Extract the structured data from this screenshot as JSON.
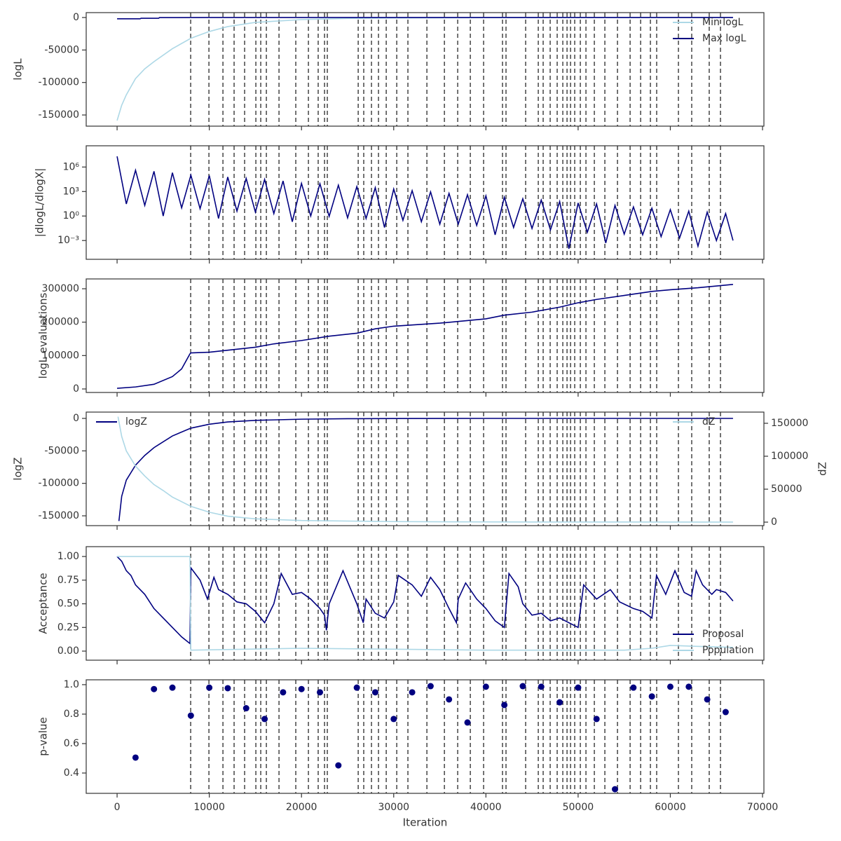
{
  "chart_data": [
    {
      "type": "line",
      "ylabel": "logL",
      "ylim": [
        -167200,
        7530
      ],
      "yticks": [
        0,
        -50000,
        -100000,
        -150000
      ],
      "legend": "upper right",
      "series": [
        {
          "name": "Min logL",
          "color": "#add8e6",
          "x": [
            0,
            500,
            1000,
            2000,
            3000,
            4000,
            6000,
            8000,
            10000,
            12000,
            15000,
            20000,
            25000,
            30000,
            40000,
            50000,
            66800
          ],
          "values": [
            -158600,
            -135000,
            -119000,
            -94000,
            -79000,
            -68000,
            -48000,
            -32000,
            -21500,
            -14000,
            -7500,
            -3200,
            -1500,
            -800,
            -300,
            -100,
            -20
          ]
        },
        {
          "name": "Max logL",
          "color": "#000080",
          "x": [
            0,
            2500,
            2600,
            4500,
            4600,
            10000,
            66800
          ],
          "values": [
            -2000,
            -2000,
            -1200,
            -1200,
            -100,
            0,
            0
          ]
        }
      ]
    },
    {
      "type": "line",
      "ylabel": "|dlogL/dlogX|",
      "log_scale": true,
      "ylim": [
        5e-06,
        400000000.0
      ],
      "yticks": [
        {
          "value": 1000000,
          "label": "10⁶"
        },
        {
          "value": 1000,
          "label": "10³"
        },
        {
          "value": 1,
          "label": "10⁰"
        },
        {
          "value": 0.001,
          "label": "10⁻³"
        }
      ],
      "series": [
        {
          "color": "#000080",
          "x": [
            0,
            1000,
            2000,
            3000,
            4000,
            5000,
            6000,
            7000,
            8000,
            9000,
            10000,
            11000,
            12000,
            13000,
            14000,
            15000,
            16000,
            17000,
            18000,
            19000,
            20000,
            21000,
            22000,
            23000,
            24000,
            25000,
            26000,
            27000,
            28000,
            29000,
            30000,
            31000,
            32000,
            33000,
            34000,
            35000,
            36000,
            37000,
            38000,
            39000,
            40000,
            41000,
            42000,
            43000,
            44000,
            45000,
            46000,
            47000,
            48000,
            49000,
            50000,
            51000,
            52000,
            53000,
            54000,
            55000,
            56000,
            57000,
            58000,
            59000,
            60000,
            61000,
            62000,
            63000,
            64000,
            65000,
            66000,
            66800
          ],
          "values": [
            20000000,
            30,
            400000,
            20,
            300000,
            1,
            200000,
            10,
            100000,
            8,
            90000,
            0.5,
            60000,
            4,
            40000,
            3,
            30000,
            2,
            20000,
            0.2,
            10000,
            1,
            9000,
            0.9,
            6000,
            0.6,
            4000,
            0.5,
            3000,
            0.04,
            2000,
            0.3,
            1300,
            0.2,
            900,
            0.1,
            600,
            0.1,
            400,
            0.07,
            300,
            0.005,
            200,
            0.04,
            130,
            0.03,
            90,
            0.02,
            60,
            0.0001,
            40,
            0.01,
            30,
            0.0005,
            20,
            0.006,
            13,
            0.005,
            9,
            0.003,
            6,
            0.002,
            4,
            0.0002,
            3,
            0.001,
            2,
            0.001
          ]
        }
      ]
    },
    {
      "type": "line",
      "ylabel": "logL evaluations",
      "ylim": [
        -10500,
        329400
      ],
      "yticks": [
        0,
        100000,
        200000,
        300000
      ],
      "series": [
        {
          "color": "#000080",
          "x": [
            0,
            2000,
            4000,
            6000,
            7000,
            7900,
            8000,
            10000,
            15000,
            17000,
            20000,
            23000,
            26000,
            28000,
            30000,
            35000,
            40000,
            42000,
            45000,
            48000,
            50000,
            52000,
            55000,
            58000,
            60000,
            63000,
            66800
          ],
          "values": [
            2000,
            6000,
            14000,
            37000,
            60000,
            105000,
            108000,
            110000,
            125000,
            135000,
            145000,
            158000,
            167000,
            180000,
            188000,
            197000,
            210000,
            221000,
            230000,
            245000,
            258000,
            268000,
            280000,
            292000,
            297000,
            303000,
            313000
          ]
        }
      ]
    },
    {
      "type": "line",
      "ylabel": "logZ",
      "y2label": "dZ",
      "ylim": [
        -165100,
        9720
      ],
      "yticks": [
        0,
        -50000,
        -100000,
        -150000
      ],
      "y2lim": [
        -5300,
        167000
      ],
      "y2ticks": [
        0,
        50000,
        100000,
        150000
      ],
      "legend": "upper left",
      "legend2": "upper right",
      "series": [
        {
          "name": "logZ",
          "color": "#000080",
          "x": [
            200,
            500,
            1000,
            2000,
            3000,
            4000,
            6000,
            8000,
            10000,
            12000,
            15000,
            20000,
            25000,
            30000,
            40000,
            66800
          ],
          "values": [
            -158000,
            -120000,
            -95000,
            -72000,
            -57000,
            -45000,
            -27000,
            -15000,
            -9000,
            -5500,
            -3000,
            -1200,
            -500,
            -200,
            0,
            0
          ]
        },
        {
          "name": "dZ",
          "color": "#add8e6",
          "axis": "y2",
          "x": [
            100,
            500,
            1000,
            2000,
            3000,
            4000,
            5000,
            6000,
            8000,
            10000,
            12000,
            15000,
            20000,
            30000,
            40000,
            66800
          ],
          "values": [
            160000,
            130000,
            108000,
            85000,
            70000,
            57000,
            48000,
            38000,
            24000,
            15000,
            9000,
            5000,
            2500,
            800,
            300,
            100
          ]
        }
      ]
    },
    {
      "type": "line",
      "ylabel": "Acceptance",
      "ylim": [
        -0.096,
        1.104
      ],
      "yticks": [
        {
          "value": 0,
          "label": "0.00"
        },
        {
          "value": 0.25,
          "label": "0.25"
        },
        {
          "value": 0.5,
          "label": "0.50"
        },
        {
          "value": 0.75,
          "label": "0.75"
        },
        {
          "value": 1,
          "label": "1.00"
        }
      ],
      "legend": "lower right",
      "series": [
        {
          "name": "Proposal",
          "color": "#000080",
          "x": [
            0,
            500,
            1000,
            1500,
            2000,
            3000,
            4000,
            5000,
            6000,
            7000,
            7900,
            8000,
            9000,
            9800,
            10500,
            11000,
            12000,
            13000,
            14000,
            15000,
            16000,
            17000,
            17800,
            19000,
            20000,
            21000,
            22000,
            22500,
            22700,
            23000,
            24500,
            26000,
            26700,
            27000,
            28000,
            29000,
            30000,
            30500,
            32000,
            33000,
            34000,
            35000,
            36000,
            36800,
            37000,
            37800,
            39000,
            40000,
            41000,
            42000,
            42500,
            43500,
            44000,
            45000,
            46000,
            47000,
            48000,
            49000,
            50000,
            50600,
            52000,
            53500,
            54500,
            56000,
            57000,
            58000,
            58500,
            59500,
            60500,
            61500,
            62300,
            62800,
            63500,
            64500,
            65000,
            66000,
            66800
          ],
          "values": [
            1.0,
            0.95,
            0.85,
            0.8,
            0.7,
            0.6,
            0.45,
            0.35,
            0.25,
            0.15,
            0.08,
            0.88,
            0.75,
            0.55,
            0.78,
            0.65,
            0.6,
            0.52,
            0.5,
            0.42,
            0.3,
            0.5,
            0.82,
            0.6,
            0.62,
            0.55,
            0.45,
            0.38,
            0.22,
            0.5,
            0.85,
            0.5,
            0.3,
            0.55,
            0.4,
            0.35,
            0.52,
            0.8,
            0.7,
            0.58,
            0.78,
            0.65,
            0.45,
            0.3,
            0.55,
            0.72,
            0.55,
            0.45,
            0.32,
            0.25,
            0.82,
            0.68,
            0.5,
            0.38,
            0.4,
            0.32,
            0.35,
            0.3,
            0.25,
            0.7,
            0.55,
            0.65,
            0.52,
            0.45,
            0.42,
            0.35,
            0.8,
            0.6,
            0.85,
            0.62,
            0.58,
            0.85,
            0.7,
            0.6,
            0.65,
            0.62,
            0.53
          ]
        },
        {
          "name": "Population",
          "color": "#add8e6",
          "x": [
            0,
            7900,
            8000,
            20000,
            30000,
            40000,
            55000,
            58000,
            60000,
            63000,
            66800
          ],
          "values": [
            1.0,
            1.0,
            0.01,
            0.03,
            0.02,
            0.01,
            0.01,
            0.03,
            0.06,
            0.05,
            0.04
          ]
        }
      ]
    },
    {
      "type": "scatter",
      "ylabel": "p-value",
      "xlabel": "Iteration",
      "color": "#000080",
      "ylim": [
        0.262,
        1.033
      ],
      "yticks": [
        0.4,
        0.6,
        0.8,
        {
          "value": 1,
          "label": "1.0"
        }
      ],
      "xlim": [
        -3350,
        70150
      ],
      "xticks": [
        0,
        10000,
        20000,
        30000,
        40000,
        50000,
        60000,
        70000
      ],
      "vlines": [
        7980,
        9960,
        11480,
        12690,
        13830,
        15050,
        15580,
        16190,
        17560,
        19380,
        20750,
        21810,
        22500,
        22800,
        26150,
        26750,
        27590,
        28350,
        29190,
        30330,
        31540,
        33600,
        35500,
        36940,
        38310,
        39750,
        41800,
        42180,
        44310,
        45680,
        46210,
        46970,
        47730,
        48340,
        48800,
        49180,
        49630,
        50240,
        50850,
        51760,
        52900,
        54270,
        55640,
        56780,
        57840,
        58520,
        60880,
        62320,
        64220,
        65440
      ],
      "x": [
        2000,
        4000,
        6000,
        8000,
        10000,
        12000,
        14000,
        16000,
        18000,
        20000,
        22000,
        24000,
        26000,
        28000,
        30000,
        32000,
        34000,
        36000,
        38000,
        40000,
        42000,
        44000,
        46000,
        48000,
        50000,
        52000,
        54000,
        56000,
        58000,
        60000,
        62000,
        64000,
        66000
      ],
      "values": [
        0.505,
        0.97,
        0.98,
        0.79,
        0.98,
        0.976,
        0.84,
        0.767,
        0.948,
        0.97,
        0.948,
        0.452,
        0.98,
        0.948,
        0.767,
        0.948,
        0.99,
        0.9,
        0.743,
        0.986,
        0.862,
        0.99,
        0.986,
        0.88,
        0.98,
        0.767,
        0.29,
        0.98,
        0.92,
        0.986,
        0.986,
        0.9,
        0.814
      ]
    }
  ]
}
